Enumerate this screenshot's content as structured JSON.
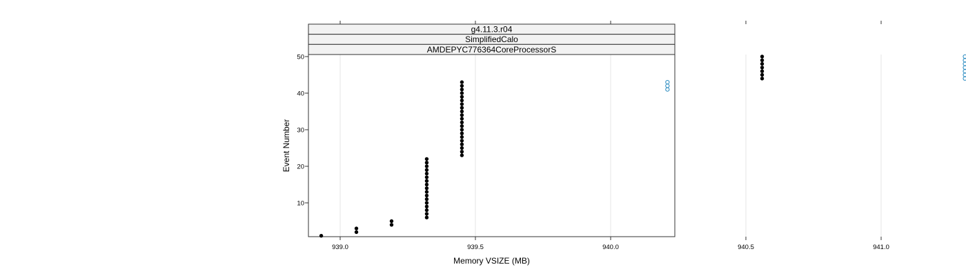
{
  "chart_data": {
    "type": "scatter",
    "strips": [
      "g4.11.3.r04",
      "SimplifiedCalo",
      "AMDEPYC776364CoreProcessorS"
    ],
    "xlabel": "Memory VSIZE (MB)",
    "ylabel": "Event Number",
    "xlim": [
      938.8,
      941.5
    ],
    "ylim": [
      0,
      50
    ],
    "x_ticks": [
      939.0,
      939.5,
      940.0,
      940.5,
      941.0
    ],
    "x_tick_labels": [
      "939.0",
      "939.5",
      "940.0",
      "940.5",
      "941.0"
    ],
    "y_ticks": [
      10,
      20,
      30,
      40,
      50
    ],
    "y_tick_labels": [
      "10",
      "20",
      "30",
      "40",
      "50"
    ],
    "grid": "vertical",
    "series": [
      {
        "marker": "filled-circle",
        "color": "#000000",
        "points": [
          {
            "x": 938.93,
            "y": 1
          },
          {
            "x": 939.06,
            "y": 2
          },
          {
            "x": 939.06,
            "y": 3
          },
          {
            "x": 939.19,
            "y": 4
          },
          {
            "x": 939.19,
            "y": 5
          },
          {
            "x": 939.32,
            "y_from": 6,
            "y_to": 22
          },
          {
            "x": 939.45,
            "y_from": 23,
            "y_to": 43
          },
          {
            "x": 940.56,
            "y_from": 44,
            "y_to": 50
          }
        ]
      },
      {
        "marker": "open-circle",
        "color": "#2a8bc0",
        "points": [
          {
            "x": 940.21,
            "y_from": 41,
            "y_to": 43
          },
          {
            "x": 941.31,
            "y_from": 44,
            "y_to": 50
          }
        ]
      }
    ]
  }
}
